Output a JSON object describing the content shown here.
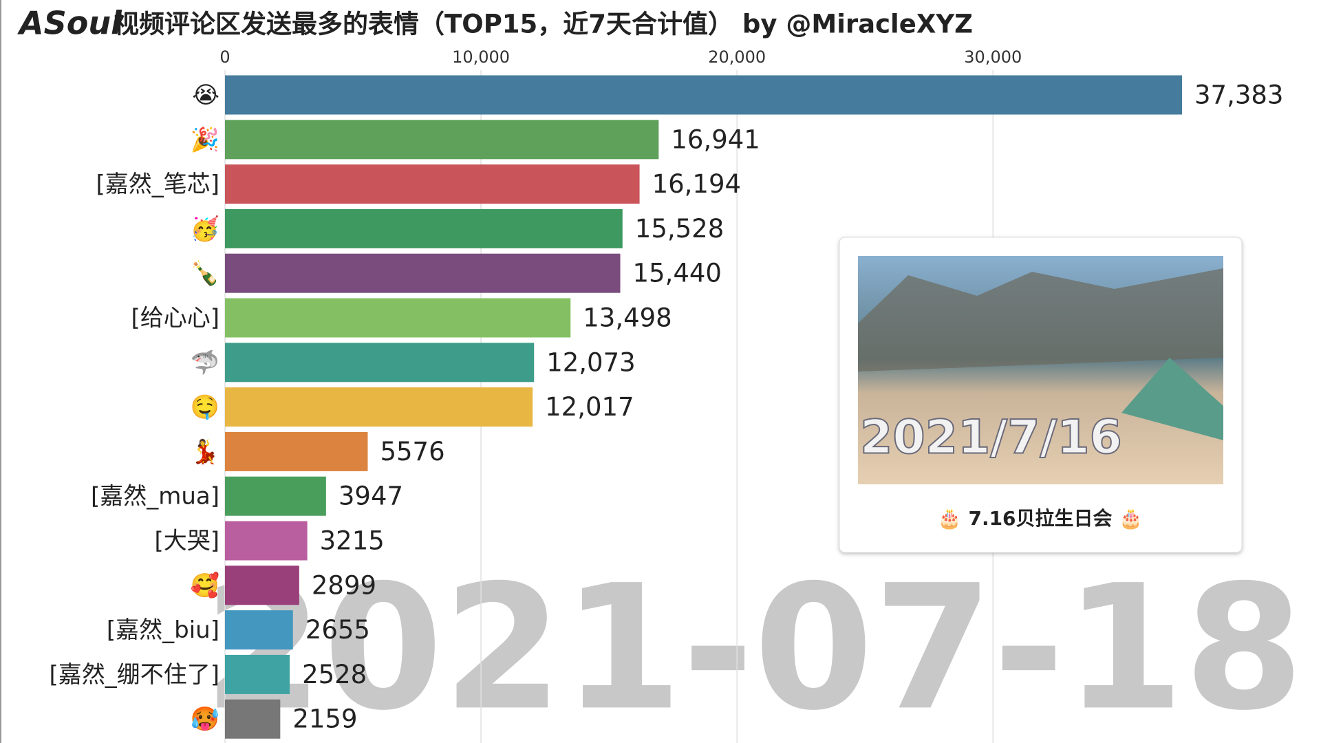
{
  "chart_data": {
    "type": "hbar",
    "logo": "ASoul",
    "title": "视频评论区发送最多的表情（TOP15，近7天合计值） by @MiracleXYZ",
    "categories": [
      "😭",
      "🎉",
      "[嘉然_笔芯]",
      "🥳",
      "🍾",
      "[给心心]",
      "🦈",
      "🤤",
      "💃",
      "[嘉然_mua]",
      "[大哭]",
      "🥰",
      "[嘉然_biu]",
      "[嘉然_绷不住了]",
      "🥵"
    ],
    "values": [
      37383,
      16941,
      16194,
      15528,
      15440,
      13498,
      12073,
      12017,
      5576,
      3947,
      3215,
      2899,
      2655,
      2528,
      2159
    ],
    "value_labels": [
      "37,383",
      "16,941",
      "16,194",
      "15,528",
      "15,440",
      "13,498",
      "12,073",
      "12,017",
      "5576",
      "3947",
      "3215",
      "2899",
      "2655",
      "2528",
      "2159"
    ],
    "colors": [
      "#457b9d",
      "#5fa05a",
      "#c9545a",
      "#3d9960",
      "#7a4c7e",
      "#84c063",
      "#3e9d8a",
      "#e8b643",
      "#dc833f",
      "#4a9e5c",
      "#b95fa0",
      "#993f7a",
      "#4497bf",
      "#3fa3a3",
      "#777777"
    ],
    "xlim": [
      0,
      37383
    ],
    "xticks": [
      0,
      {
        "value": 10000,
        "label": "10,000"
      },
      {
        "value": 20000,
        "label": "20,000"
      },
      {
        "value": 30000,
        "label": "30,000"
      }
    ],
    "grid": true,
    "date_label": "2021-07-18",
    "annotation": {
      "image_text": "2021/7/16",
      "caption": "🎂 7.16贝拉生日会 🎂"
    }
  }
}
